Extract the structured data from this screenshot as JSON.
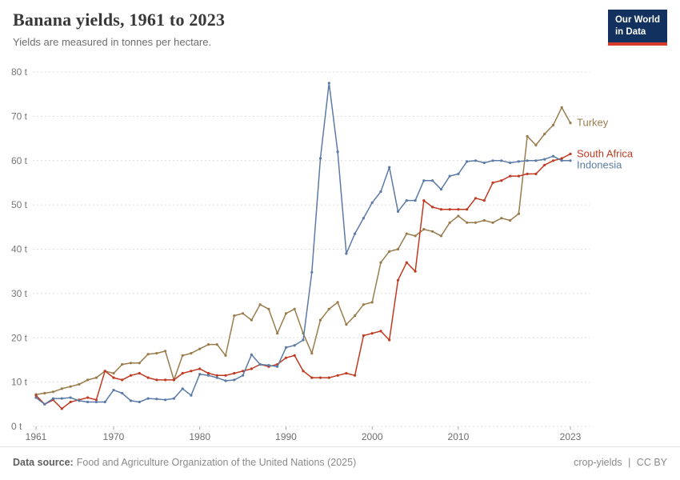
{
  "header": {
    "title": "Banana yields, 1961 to 2023",
    "subtitle": "Yields are measured in tonnes per hectare.",
    "logo": {
      "line1": "Our World",
      "line2": "in Data"
    }
  },
  "chart_data": {
    "type": "line",
    "title": "Banana yields, 1961 to 2023",
    "xlabel": "",
    "ylabel": "tonnes per hectare",
    "x_range": [
      1961,
      2023
    ],
    "y_range": [
      0,
      80
    ],
    "grid": true,
    "legend_position": "right-end-labels",
    "x_ticks": {
      "values": [
        1961,
        1970,
        1980,
        1990,
        2000,
        2010,
        2023
      ],
      "labels": [
        "1961",
        "1970",
        "1980",
        "1990",
        "2000",
        "2010",
        "2023"
      ]
    },
    "y_ticks": {
      "values": [
        0,
        10,
        20,
        30,
        40,
        50,
        60,
        70,
        80
      ],
      "labels": [
        "0 t",
        "10 t",
        "20 t",
        "30 t",
        "40 t",
        "50 t",
        "60 t",
        "70 t",
        "80 t"
      ]
    },
    "x": [
      1961,
      1962,
      1963,
      1964,
      1965,
      1966,
      1967,
      1968,
      1969,
      1970,
      1971,
      1972,
      1973,
      1974,
      1975,
      1976,
      1977,
      1978,
      1979,
      1980,
      1981,
      1982,
      1983,
      1984,
      1985,
      1986,
      1987,
      1988,
      1989,
      1990,
      1991,
      1992,
      1993,
      1994,
      1995,
      1996,
      1997,
      1998,
      1999,
      2000,
      2001,
      2002,
      2003,
      2004,
      2005,
      2006,
      2007,
      2008,
      2009,
      2010,
      2011,
      2012,
      2013,
      2014,
      2015,
      2016,
      2017,
      2018,
      2019,
      2020,
      2021,
      2022,
      2023
    ],
    "series": [
      {
        "name": "Turkey",
        "color": "#9A7C4C",
        "values": [
          7.2,
          7.5,
          7.8,
          8.5,
          9.0,
          9.5,
          10.5,
          11.0,
          12.5,
          12.0,
          14.0,
          14.3,
          14.3,
          16.3,
          16.5,
          17.0,
          10.5,
          16.0,
          16.5,
          17.5,
          18.5,
          18.5,
          16.0,
          25.0,
          25.5,
          24.0,
          27.5,
          26.5,
          21.0,
          25.5,
          26.5,
          21.0,
          16.5,
          24.0,
          26.5,
          28.0,
          23.0,
          25.0,
          27.5,
          28.0,
          37.0,
          39.5,
          40.0,
          43.5,
          43.0,
          44.5,
          44.0,
          43.0,
          46.0,
          47.5,
          46.0,
          46.0,
          46.5,
          46.0,
          47.0,
          46.5,
          48.0,
          65.5,
          63.5,
          66.0,
          68.0,
          72.0,
          68.5
        ]
      },
      {
        "name": "South Africa",
        "color": "#C03A21",
        "values": [
          7.0,
          5.0,
          6.0,
          4.0,
          5.5,
          6.0,
          6.5,
          6.0,
          12.5,
          11.0,
          10.5,
          11.5,
          12.0,
          11.0,
          10.5,
          10.5,
          10.5,
          12.0,
          12.5,
          13.0,
          12.0,
          11.5,
          11.5,
          12.0,
          12.5,
          13.0,
          14.0,
          13.5,
          14.0,
          15.5,
          16.0,
          12.5,
          11.0,
          11.0,
          11.0,
          11.5,
          12.0,
          11.5,
          20.5,
          21.0,
          21.5,
          19.5,
          33.0,
          37.0,
          35.0,
          51.0,
          49.5,
          49.0,
          49.0,
          49.0,
          49.0,
          51.5,
          51.0,
          55.0,
          55.5,
          56.5,
          56.5,
          57.0,
          57.0,
          59.0,
          60.0,
          60.5,
          61.5
        ]
      },
      {
        "name": "Indonesia",
        "color": "#5B7BA6",
        "values": [
          6.5,
          5.0,
          6.3,
          6.3,
          6.5,
          5.8,
          5.5,
          5.5,
          5.5,
          8.2,
          7.5,
          5.8,
          5.5,
          6.3,
          6.2,
          6.0,
          6.3,
          8.5,
          7.0,
          11.8,
          11.5,
          11.0,
          10.3,
          10.5,
          11.5,
          16.2,
          14.0,
          13.8,
          13.5,
          17.8,
          18.3,
          19.5,
          34.8,
          60.5,
          77.5,
          62.0,
          39.0,
          43.5,
          47.0,
          50.5,
          53.0,
          58.5,
          48.5,
          51.0,
          51.0,
          55.5,
          55.5,
          53.5,
          56.5,
          57.0,
          59.8,
          60.0,
          59.5,
          60.0,
          60.0,
          59.5,
          59.8,
          60.0,
          60.0,
          60.3,
          61.0,
          60.0,
          60.0
        ]
      }
    ]
  },
  "footer": {
    "source_label": "Data source:",
    "source_text": "Food and Agriculture Organization of the United Nations (2025)",
    "links": {
      "left": "crop-yields",
      "separator": "|",
      "right": "CC BY"
    }
  }
}
